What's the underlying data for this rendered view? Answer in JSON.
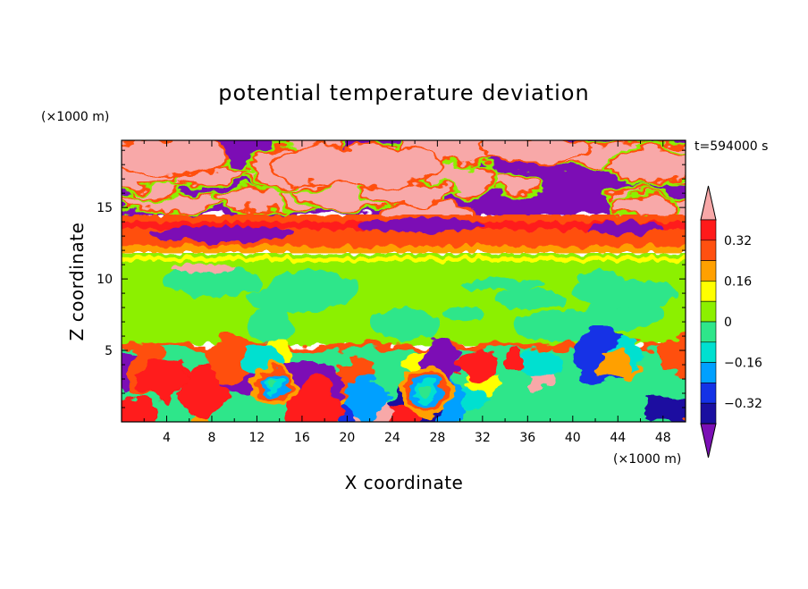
{
  "chart_data": {
    "type": "heatmap",
    "title": "potential temperature deviation",
    "xlabel": "X coordinate",
    "ylabel": "Z coordinate",
    "x_unit": "(×1000 m)",
    "y_unit": "(×1000 m)",
    "time_label": "t=594000 s",
    "xlim": [
      0,
      50
    ],
    "ylim": [
      0,
      19.7
    ],
    "x_ticks": [
      "4",
      "8",
      "12",
      "16",
      "20",
      "24",
      "28",
      "32",
      "36",
      "40",
      "44",
      "48"
    ],
    "x_tick_values": [
      4,
      8,
      12,
      16,
      20,
      24,
      28,
      32,
      36,
      40,
      44,
      48
    ],
    "y_ticks": [
      "5",
      "10",
      "15"
    ],
    "y_tick_values": [
      5,
      10,
      15
    ],
    "colorbar": {
      "levels": [
        -0.4,
        -0.32,
        -0.24,
        -0.16,
        -0.08,
        0,
        0.08,
        0.16,
        0.24,
        0.32,
        0.4
      ],
      "colors": [
        "#7b0fb5",
        "#1a0fa0",
        "#1432e6",
        "#00a0ff",
        "#00e0d0",
        "#2ee68a",
        "#8cf000",
        "#ffff00",
        "#ffa000",
        "#ff5010",
        "#ff1a1a",
        "#f8a8a8"
      ],
      "tick_labels": [
        "0.32",
        "0.16",
        "0",
        "−0.16",
        "−0.32"
      ],
      "tick_values": [
        0.32,
        0.16,
        0,
        -0.16,
        -0.32
      ],
      "extend": "both"
    },
    "layers": [
      {
        "z_range": [
          19.7,
          14.5
        ],
        "description_values": "mixed strongly negative and strongly positive patches",
        "value_min": -0.4,
        "value_max": 0.4
      },
      {
        "z_range": [
          14.5,
          11.8
        ],
        "value": 0.3
      },
      {
        "z_range": [
          11.8,
          5.3
        ],
        "value": 0.05
      },
      {
        "z_range": [
          5.3,
          0
        ],
        "value_min": -0.4,
        "value_max": 0.4
      }
    ]
  }
}
